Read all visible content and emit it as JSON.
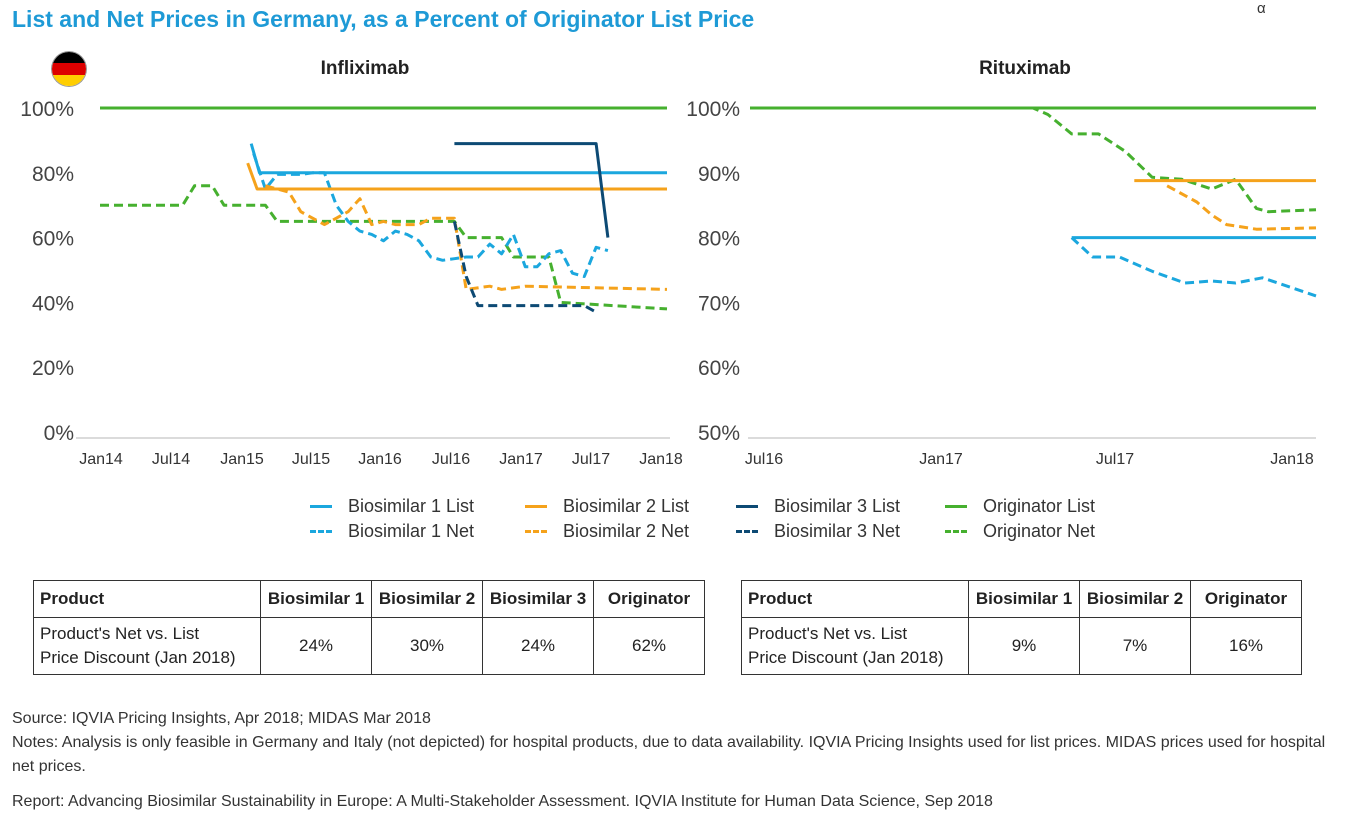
{
  "title": "List and Net Prices in Germany, as a Percent of Originator List Price",
  "corner_mark": "α",
  "colors": {
    "biosimilar1": "#1ba7de",
    "biosimilar2": "#f5a21b",
    "biosimilar3": "#0d4a74",
    "originator": "#46b02f",
    "title": "#1e9ad6"
  },
  "legend": [
    {
      "label": "Biosimilar 1 List",
      "key": "biosimilar1",
      "style": "solid"
    },
    {
      "label": "Biosimilar 2 List",
      "key": "biosimilar2",
      "style": "solid"
    },
    {
      "label": "Biosimilar 3 List",
      "key": "biosimilar3",
      "style": "solid"
    },
    {
      "label": "Originator List",
      "key": "originator",
      "style": "solid"
    },
    {
      "label": "Biosimilar 1 Net",
      "key": "biosimilar1",
      "style": "dashed"
    },
    {
      "label": "Biosimilar 2 Net",
      "key": "biosimilar2",
      "style": "dashed"
    },
    {
      "label": "Biosimilar 3 Net",
      "key": "biosimilar3",
      "style": "dashed"
    },
    {
      "label": "Originator Net",
      "key": "originator",
      "style": "dashed"
    }
  ],
  "chart_data": [
    {
      "type": "line",
      "title": "Infliximab",
      "x_ticks": [
        "Jan14",
        "Jul14",
        "Jan15",
        "Jul15",
        "Jan16",
        "Jul16",
        "Jan17",
        "Jul17",
        "Jan18"
      ],
      "xlim": [
        0,
        48
      ],
      "ylim": [
        0,
        100
      ],
      "y_ticks": [
        0,
        20,
        40,
        60,
        80,
        100
      ],
      "y_tick_labels": [
        "0%",
        "20%",
        "40%",
        "60%",
        "80%",
        "100%"
      ],
      "series": [
        {
          "name": "Originator List",
          "key": "originator",
          "style": "solid",
          "points": [
            [
              0,
              100
            ],
            [
              48,
              100
            ]
          ]
        },
        {
          "name": "Originator Net",
          "key": "originator",
          "style": "dashed",
          "points": [
            [
              0,
              70
            ],
            [
              7,
              70
            ],
            [
              8,
              76
            ],
            [
              9.5,
              76
            ],
            [
              10.5,
              70
            ],
            [
              14,
              70
            ],
            [
              15,
              65
            ],
            [
              30,
              65
            ],
            [
              31,
              60
            ],
            [
              34,
              60
            ],
            [
              35,
              54
            ],
            [
              38,
              54
            ],
            [
              39,
              40
            ],
            [
              48,
              38
            ]
          ]
        },
        {
          "name": "Biosimilar 1 List",
          "key": "biosimilar1",
          "style": "solid",
          "points": [
            [
              12.8,
              89
            ],
            [
              13.5,
              80
            ],
            [
              48,
              80
            ]
          ]
        },
        {
          "name": "Biosimilar 1 Net",
          "key": "biosimilar1",
          "style": "dashed",
          "points": [
            [
              13,
              86
            ],
            [
              14,
              75
            ],
            [
              15,
              79.5
            ],
            [
              16,
              79.5
            ],
            [
              17,
              79.5
            ],
            [
              18,
              80
            ],
            [
              19,
              80
            ],
            [
              20,
              70
            ],
            [
              21,
              65
            ],
            [
              22,
              62
            ],
            [
              23,
              61
            ],
            [
              24,
              59
            ],
            [
              25,
              62
            ],
            [
              26,
              61
            ],
            [
              27,
              59
            ],
            [
              28,
              54
            ],
            [
              29,
              53
            ],
            [
              30,
              53.5
            ],
            [
              31,
              54
            ],
            [
              32,
              54
            ],
            [
              33,
              58
            ],
            [
              34,
              55
            ],
            [
              35,
              61
            ],
            [
              36,
              51
            ],
            [
              37,
              51
            ],
            [
              38,
              55
            ],
            [
              39,
              56
            ],
            [
              40,
              49
            ],
            [
              41,
              48
            ],
            [
              42,
              57
            ],
            [
              43,
              56
            ]
          ]
        },
        {
          "name": "Biosimilar 2 List",
          "key": "biosimilar2",
          "style": "solid",
          "points": [
            [
              12.5,
              83
            ],
            [
              13.3,
              75
            ],
            [
              48,
              75
            ]
          ]
        },
        {
          "name": "Biosimilar 2 Net",
          "key": "biosimilar2",
          "style": "dashed",
          "points": [
            [
              14,
              76
            ],
            [
              16,
              74
            ],
            [
              17,
              68
            ],
            [
              19,
              64
            ],
            [
              20,
              66
            ],
            [
              21,
              68
            ],
            [
              22,
              72
            ],
            [
              23,
              64
            ],
            [
              24,
              65
            ],
            [
              25,
              64
            ],
            [
              27,
              64
            ],
            [
              28,
              66
            ],
            [
              30,
              66
            ],
            [
              31,
              44
            ],
            [
              33,
              45
            ],
            [
              34,
              44
            ],
            [
              36,
              45
            ],
            [
              48,
              44
            ]
          ]
        },
        {
          "name": "Biosimilar 3 List",
          "key": "biosimilar3",
          "style": "solid",
          "points": [
            [
              30,
              89
            ],
            [
              42,
              89
            ],
            [
              43,
              60
            ]
          ]
        },
        {
          "name": "Biosimilar 3 Net",
          "key": "biosimilar3",
          "style": "dashed",
          "points": [
            [
              30,
              65
            ],
            [
              31,
              48
            ],
            [
              32,
              39
            ],
            [
              40,
              39
            ],
            [
              41,
              39
            ],
            [
              42,
              37
            ]
          ]
        }
      ]
    },
    {
      "type": "line",
      "title": "Rituximab",
      "x_ticks": [
        "Jul16",
        "Jan17",
        "Jul17",
        "Jan18"
      ],
      "xlim": [
        0,
        19
      ],
      "ylim": [
        50,
        100
      ],
      "y_ticks": [
        50,
        60,
        70,
        80,
        90,
        100
      ],
      "y_tick_labels": [
        "50%",
        "60%",
        "70%",
        "80%",
        "90%",
        "100%"
      ],
      "series": [
        {
          "name": "Originator List",
          "key": "originator",
          "style": "solid",
          "points": [
            [
              0,
              100
            ],
            [
              19,
              100
            ]
          ]
        },
        {
          "name": "Originator Net",
          "key": "originator",
          "style": "dashed",
          "points": [
            [
              0,
              100
            ],
            [
              9.5,
              100
            ],
            [
              10,
              99
            ],
            [
              10.8,
              96
            ],
            [
              11.7,
              96
            ],
            [
              12.6,
              93.3
            ],
            [
              13.5,
              89.3
            ],
            [
              14.5,
              89
            ],
            [
              15.5,
              87.5
            ],
            [
              16.3,
              89
            ],
            [
              17,
              84.5
            ],
            [
              17.4,
              84
            ],
            [
              19,
              84.3
            ]
          ]
        },
        {
          "name": "Biosimilar 1 List",
          "key": "biosimilar1",
          "style": "solid",
          "points": [
            [
              10.8,
              80
            ],
            [
              19,
              80
            ]
          ]
        },
        {
          "name": "Biosimilar 1 Net",
          "key": "biosimilar1",
          "style": "dashed",
          "points": [
            [
              10.8,
              80
            ],
            [
              11.5,
              77
            ],
            [
              12.4,
              77
            ],
            [
              13.5,
              74.8
            ],
            [
              14.6,
              73
            ],
            [
              15.5,
              73.3
            ],
            [
              16.3,
              73
            ],
            [
              17.2,
              73.8
            ],
            [
              19,
              71
            ]
          ]
        },
        {
          "name": "Biosimilar 2 List",
          "key": "biosimilar2",
          "style": "solid",
          "points": [
            [
              12.9,
              88.8
            ],
            [
              19,
              88.8
            ]
          ]
        },
        {
          "name": "Biosimilar 2 Net",
          "key": "biosimilar2",
          "style": "dashed",
          "points": [
            [
              14,
              88
            ],
            [
              15,
              85.5
            ],
            [
              15.5,
              83.5
            ],
            [
              16,
              82
            ],
            [
              17,
              81.3
            ],
            [
              19,
              81.5
            ]
          ]
        }
      ]
    }
  ],
  "tables": [
    {
      "headers": [
        "Product",
        "Biosimilar 1",
        "Biosimilar 2",
        "Biosimilar 3",
        "Originator"
      ],
      "row_label_line1": "Product's Net vs. List",
      "row_label_line2": "Price Discount (Jan 2018)",
      "values": [
        "24%",
        "30%",
        "24%",
        "62%"
      ]
    },
    {
      "headers": [
        "Product",
        "Biosimilar 1",
        "Biosimilar 2",
        "Originator"
      ],
      "row_label_line1": "Product's Net vs. List",
      "row_label_line2": "Price Discount (Jan 2018)",
      "values": [
        "9%",
        "7%",
        "16%"
      ]
    }
  ],
  "notes": {
    "source": "Source: IQVIA Pricing Insights, Apr 2018; MIDAS  Mar 2018",
    "notes": "Notes: Analysis is only feasible in Germany and Italy (not depicted) for hospital products, due to data availability. IQVIA Pricing Insights used for list prices. MIDAS prices used for hospital net prices.",
    "report": "Report: Advancing Biosimilar Sustainability in Europe: A Multi-Stakeholder Assessment. IQVIA Institute for Human Data Science, Sep 2018"
  }
}
